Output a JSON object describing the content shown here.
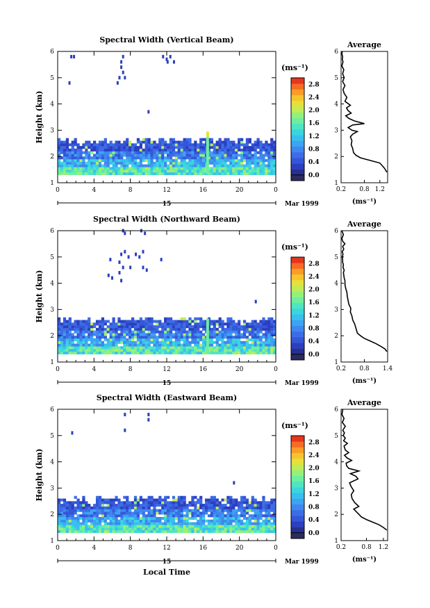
{
  "figure": {
    "xlabel": "Local Time",
    "date_day": "15",
    "date_month": "Mar 1999",
    "x_ticks": [
      "0",
      "4",
      "8",
      "12",
      "16",
      "20",
      "0"
    ],
    "y_ticks": [
      "1",
      "2",
      "3",
      "4",
      "5",
      "6"
    ],
    "ylabel": "Height (km)",
    "colorbar_unit": "(ms⁻¹)",
    "avg_title": "Average",
    "avg_xlabel": "(ms⁻¹)"
  },
  "colors": {
    "colormap": [
      "#2b2b5e",
      "#27308f",
      "#2c3fbf",
      "#3556d8",
      "#3c6de6",
      "#3f87ef",
      "#3da3f2",
      "#38bfee",
      "#3ad6df",
      "#4fe5c2",
      "#6def9f",
      "#95f07a",
      "#c2ec55",
      "#e6e03a",
      "#f8c42e",
      "#fb9c27",
      "#f66c22",
      "#e5361f"
    ]
  },
  "chart_data": [
    {
      "type": "heatmap",
      "title": "Spectral Width (Vertical Beam)",
      "x_range": [
        0,
        24
      ],
      "y_range": [
        1,
        6
      ],
      "cbar_ticks": [
        "0.0",
        "0.4",
        "0.8",
        "1.2",
        "1.6",
        "2.0",
        "2.4",
        "2.8"
      ],
      "cbar_range": [
        0,
        3.0
      ],
      "scatter_points": [
        [
          1.5,
          5.8
        ],
        [
          1.8,
          5.8
        ],
        [
          1.3,
          4.8
        ],
        [
          7.2,
          5.8
        ],
        [
          7.0,
          5.6
        ],
        [
          7.0,
          5.4
        ],
        [
          7.2,
          5.2
        ],
        [
          6.8,
          5.0
        ],
        [
          6.6,
          4.8
        ],
        [
          7.4,
          5.0
        ],
        [
          11.6,
          5.8
        ],
        [
          12.0,
          5.7
        ],
        [
          12.1,
          5.6
        ],
        [
          12.4,
          5.8
        ],
        [
          12.8,
          5.6
        ],
        [
          10.0,
          3.7
        ]
      ],
      "profile": {
        "title": "Average",
        "xlim": [
          0.2,
          1.4
        ],
        "x_ticks": [
          "0.2",
          "0.8",
          "1.2"
        ],
        "y_ticks": [
          "1",
          "2",
          "3",
          "4",
          "5",
          "6"
        ],
        "x": [
          1.38,
          1.32,
          1.2,
          0.95,
          0.7,
          0.58,
          0.52,
          0.5,
          0.46,
          0.48,
          0.44,
          0.5,
          0.56,
          0.62,
          0.48,
          0.38,
          0.5,
          0.8,
          0.55,
          0.4,
          0.32,
          0.46,
          0.38,
          0.34,
          0.44,
          0.3,
          0.35,
          0.28,
          0.25,
          0.3,
          0.24,
          0.28,
          0.24,
          0.27,
          0.22,
          0.25,
          0.23,
          0.24,
          0.22,
          0.23
        ],
        "y": [
          1.4,
          1.55,
          1.75,
          1.85,
          1.95,
          2.05,
          2.15,
          2.3,
          2.45,
          2.6,
          2.75,
          2.85,
          2.9,
          2.95,
          3.0,
          3.1,
          3.2,
          3.25,
          3.35,
          3.45,
          3.55,
          3.65,
          3.75,
          3.85,
          3.95,
          4.1,
          4.25,
          4.4,
          4.55,
          4.7,
          4.85,
          5.0,
          5.15,
          5.3,
          5.45,
          5.6,
          5.7,
          5.8,
          5.9,
          6.0
        ]
      }
    },
    {
      "type": "heatmap",
      "title": "Spectral Width (Northward Beam)",
      "x_range": [
        0,
        24
      ],
      "y_range": [
        1,
        6
      ],
      "cbar_ticks": [
        "0.0",
        "0.4",
        "0.8",
        "1.2",
        "1.6",
        "2.0",
        "2.4",
        "2.8"
      ],
      "cbar_range": [
        0,
        3.0
      ],
      "scatter_points": [
        [
          7.2,
          6.0
        ],
        [
          7.4,
          5.9
        ],
        [
          9.2,
          6.0
        ],
        [
          9.6,
          5.9
        ],
        [
          7.0,
          5.1
        ],
        [
          7.4,
          5.2
        ],
        [
          7.8,
          5.0
        ],
        [
          8.6,
          5.1
        ],
        [
          9.4,
          5.2
        ],
        [
          9.0,
          5.0
        ],
        [
          5.8,
          4.9
        ],
        [
          6.8,
          4.8
        ],
        [
          7.2,
          4.6
        ],
        [
          8.0,
          4.6
        ],
        [
          9.4,
          4.6
        ],
        [
          9.8,
          4.5
        ],
        [
          11.4,
          4.9
        ],
        [
          5.6,
          4.3
        ],
        [
          6.0,
          4.2
        ],
        [
          6.8,
          4.4
        ],
        [
          7.0,
          4.1
        ],
        [
          21.8,
          3.3
        ]
      ],
      "profile": {
        "title": "Average",
        "xlim": [
          0.2,
          1.4
        ],
        "x_ticks": [
          "0.2",
          "0.8",
          "1.4"
        ],
        "y_ticks": [
          "1",
          "2",
          "3",
          "4",
          "5",
          "6"
        ],
        "x": [
          1.38,
          1.33,
          1.22,
          1.1,
          0.95,
          0.8,
          0.7,
          0.62,
          0.6,
          0.58,
          0.55,
          0.5,
          0.48,
          0.44,
          0.45,
          0.4,
          0.38,
          0.36,
          0.35,
          0.32,
          0.3,
          0.3,
          0.28,
          0.27,
          0.26,
          0.28,
          0.25,
          0.26,
          0.24,
          0.24,
          0.23,
          0.25,
          0.23,
          0.27,
          0.24,
          0.3,
          0.24,
          0.22,
          0.26,
          0.22
        ],
        "y": [
          1.4,
          1.5,
          1.6,
          1.7,
          1.8,
          1.9,
          2.0,
          2.1,
          2.2,
          2.3,
          2.45,
          2.6,
          2.75,
          2.9,
          3.05,
          3.2,
          3.35,
          3.5,
          3.65,
          3.8,
          3.95,
          4.1,
          4.2,
          4.3,
          4.4,
          4.5,
          4.6,
          4.7,
          4.8,
          4.9,
          5.0,
          5.1,
          5.2,
          5.3,
          5.4,
          5.5,
          5.6,
          5.7,
          5.85,
          6.0
        ]
      }
    },
    {
      "type": "heatmap",
      "title": "Spectral Width (Eastward Beam)",
      "x_range": [
        0,
        24
      ],
      "y_range": [
        1,
        6
      ],
      "cbar_ticks": [
        "0.0",
        "0.4",
        "0.8",
        "1.2",
        "1.6",
        "2.0",
        "2.4",
        "2.8"
      ],
      "cbar_range": [
        0,
        3.0
      ],
      "scatter_points": [
        [
          7.4,
          5.8
        ],
        [
          10.0,
          5.8
        ],
        [
          10.0,
          5.6
        ],
        [
          7.4,
          5.2
        ],
        [
          1.6,
          5.1
        ],
        [
          19.4,
          3.2
        ]
      ],
      "profile": {
        "title": "Average",
        "xlim": [
          0.2,
          1.3
        ],
        "x_ticks": [
          "0.2",
          "0.8",
          "1.2"
        ],
        "y_ticks": [
          "1",
          "2",
          "3",
          "4",
          "5",
          "6"
        ],
        "x": [
          1.28,
          1.2,
          1.1,
          0.95,
          0.8,
          0.68,
          0.62,
          0.56,
          0.5,
          0.62,
          0.52,
          0.46,
          0.44,
          0.5,
          0.44,
          0.4,
          0.6,
          0.55,
          0.42,
          0.62,
          0.38,
          0.33,
          0.32,
          0.45,
          0.34,
          0.28,
          0.38,
          0.3,
          0.27,
          0.35,
          0.26,
          0.3,
          0.25,
          0.28,
          0.24,
          0.3,
          0.23,
          0.27,
          0.22,
          0.24
        ],
        "y": [
          1.4,
          1.5,
          1.6,
          1.7,
          1.8,
          1.9,
          2.0,
          2.1,
          2.2,
          2.3,
          2.45,
          2.6,
          2.75,
          2.9,
          3.05,
          3.2,
          3.35,
          3.45,
          3.55,
          3.65,
          3.75,
          3.85,
          3.95,
          4.05,
          4.15,
          4.25,
          4.35,
          4.45,
          4.6,
          4.7,
          4.8,
          4.9,
          5.0,
          5.1,
          5.2,
          5.35,
          5.5,
          5.65,
          5.8,
          6.0
        ]
      }
    }
  ]
}
